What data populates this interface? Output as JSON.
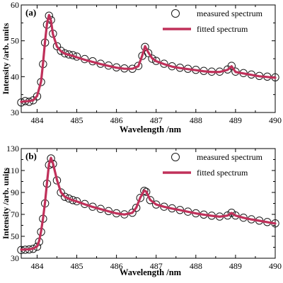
{
  "chart_data": [
    {
      "type": "line",
      "panel_label": "(a)",
      "xlabel": "Wavelength /nm",
      "ylabel": "Intensity /arb. units",
      "xlim": [
        483.6,
        490
      ],
      "ylim": [
        30,
        60
      ],
      "xticks": [
        484,
        485,
        486,
        487,
        488,
        489,
        490
      ],
      "yticks": [
        30,
        40,
        50,
        60
      ],
      "legend_position": "top-right",
      "series": [
        {
          "name": "measured spectrum",
          "marker": "open-circle",
          "color": "#1a1a1a",
          "x": [
            483.6,
            483.7,
            483.8,
            483.9,
            484.0,
            484.1,
            484.15,
            484.2,
            484.25,
            484.3,
            484.35,
            484.4,
            484.5,
            484.6,
            484.7,
            484.8,
            484.9,
            485.0,
            485.2,
            485.4,
            485.6,
            485.8,
            486.0,
            486.2,
            486.4,
            486.55,
            486.65,
            486.72,
            486.8,
            486.9,
            487.0,
            487.2,
            487.4,
            487.6,
            487.8,
            488.0,
            488.2,
            488.4,
            488.6,
            488.8,
            488.9,
            489.0,
            489.2,
            489.4,
            489.6,
            489.8,
            490.0
          ],
          "y": [
            32.8,
            33.2,
            33.0,
            33.4,
            34.5,
            38.5,
            43.5,
            49.5,
            54.5,
            57.0,
            55.8,
            52.0,
            48.5,
            47.2,
            46.5,
            46.2,
            46.0,
            45.6,
            44.9,
            44.3,
            43.6,
            43.1,
            42.6,
            42.3,
            42.2,
            43.0,
            45.8,
            48.3,
            46.6,
            45.0,
            44.4,
            43.6,
            42.9,
            42.5,
            42.2,
            41.9,
            41.6,
            41.4,
            41.4,
            42.0,
            43.0,
            41.4,
            41.0,
            40.6,
            40.2,
            40.0,
            39.8
          ]
        },
        {
          "name": "fitted spectrum",
          "marker": "line",
          "color": "#c0305a",
          "x": [
            483.6,
            483.7,
            483.8,
            483.9,
            484.0,
            484.1,
            484.15,
            484.2,
            484.25,
            484.3,
            484.35,
            484.4,
            484.5,
            484.6,
            484.7,
            484.8,
            484.9,
            485.0,
            485.2,
            485.4,
            485.6,
            485.8,
            486.0,
            486.2,
            486.4,
            486.55,
            486.65,
            486.72,
            486.8,
            486.9,
            487.0,
            487.2,
            487.4,
            487.6,
            487.8,
            488.0,
            488.2,
            488.4,
            488.6,
            488.8,
            488.9,
            489.0,
            489.2,
            489.4,
            489.6,
            489.8,
            490.0
          ],
          "y": [
            33.0,
            33.1,
            33.2,
            33.4,
            34.6,
            38.6,
            43.8,
            49.8,
            54.8,
            57.2,
            55.6,
            51.8,
            48.4,
            47.1,
            46.4,
            46.1,
            45.8,
            45.4,
            44.7,
            44.1,
            43.5,
            43.0,
            42.5,
            42.2,
            42.2,
            42.9,
            45.9,
            48.5,
            46.8,
            45.1,
            44.3,
            43.5,
            42.8,
            42.4,
            42.1,
            41.8,
            41.5,
            41.3,
            41.3,
            41.9,
            42.9,
            41.3,
            40.9,
            40.5,
            40.1,
            39.9,
            39.7
          ]
        }
      ]
    },
    {
      "type": "line",
      "panel_label": "(b)",
      "xlabel": "Wavelength /nm",
      "ylabel": "Intensity /arb. units",
      "xlim": [
        483.6,
        490
      ],
      "ylim": [
        30,
        130
      ],
      "xticks": [
        484,
        485,
        486,
        487,
        488,
        489,
        490
      ],
      "yticks": [
        30,
        50,
        70,
        90,
        110,
        130
      ],
      "legend_position": "top-right",
      "series": [
        {
          "name": "measured spectrum",
          "marker": "open-circle",
          "color": "#1a1a1a",
          "x": [
            483.6,
            483.7,
            483.8,
            483.9,
            484.0,
            484.05,
            484.1,
            484.15,
            484.2,
            484.25,
            484.3,
            484.35,
            484.4,
            484.5,
            484.6,
            484.7,
            484.8,
            484.9,
            485.0,
            485.2,
            485.4,
            485.6,
            485.8,
            486.0,
            486.2,
            486.4,
            486.5,
            486.6,
            486.7,
            486.75,
            486.85,
            487.0,
            487.2,
            487.4,
            487.6,
            487.8,
            488.0,
            488.2,
            488.4,
            488.6,
            488.8,
            488.9,
            489.0,
            489.2,
            489.4,
            489.6,
            489.8,
            490.0
          ],
          "y": [
            37.5,
            37.8,
            38.0,
            38.6,
            40.5,
            45.0,
            54.0,
            66.0,
            80.0,
            98.0,
            115.0,
            121.0,
            116.0,
            101.0,
            90.0,
            86.0,
            84.5,
            83.0,
            82.0,
            79.5,
            77.0,
            75.0,
            73.0,
            71.0,
            70.0,
            71.5,
            76.0,
            85.0,
            91.5,
            90.5,
            83.0,
            79.0,
            77.0,
            75.5,
            74.0,
            72.5,
            71.0,
            69.8,
            68.8,
            68.0,
            69.0,
            71.5,
            69.0,
            67.0,
            65.5,
            64.3,
            63.0,
            61.8
          ]
        },
        {
          "name": "fitted spectrum",
          "marker": "line",
          "color": "#c0305a",
          "x": [
            483.6,
            483.7,
            483.8,
            483.9,
            484.0,
            484.05,
            484.1,
            484.15,
            484.2,
            484.25,
            484.3,
            484.35,
            484.4,
            484.5,
            484.6,
            484.7,
            484.8,
            484.9,
            485.0,
            485.2,
            485.4,
            485.6,
            485.8,
            486.0,
            486.2,
            486.4,
            486.5,
            486.6,
            486.7,
            486.75,
            486.85,
            487.0,
            487.2,
            487.4,
            487.6,
            487.8,
            488.0,
            488.2,
            488.4,
            488.6,
            488.8,
            488.9,
            489.0,
            489.2,
            489.4,
            489.6,
            489.8,
            490.0
          ],
          "y": [
            37.8,
            38.0,
            38.2,
            38.8,
            40.8,
            45.5,
            54.5,
            66.5,
            81.0,
            99.0,
            116.0,
            121.5,
            116.5,
            101.5,
            90.2,
            86.0,
            84.3,
            82.8,
            81.8,
            79.2,
            76.8,
            74.8,
            72.8,
            70.9,
            69.9,
            71.4,
            76.2,
            85.3,
            91.8,
            90.7,
            83.2,
            79.0,
            76.9,
            75.3,
            73.9,
            72.4,
            70.9,
            69.7,
            68.7,
            67.9,
            68.9,
            71.3,
            68.9,
            66.9,
            65.4,
            64.2,
            62.9,
            61.7
          ]
        }
      ]
    }
  ]
}
